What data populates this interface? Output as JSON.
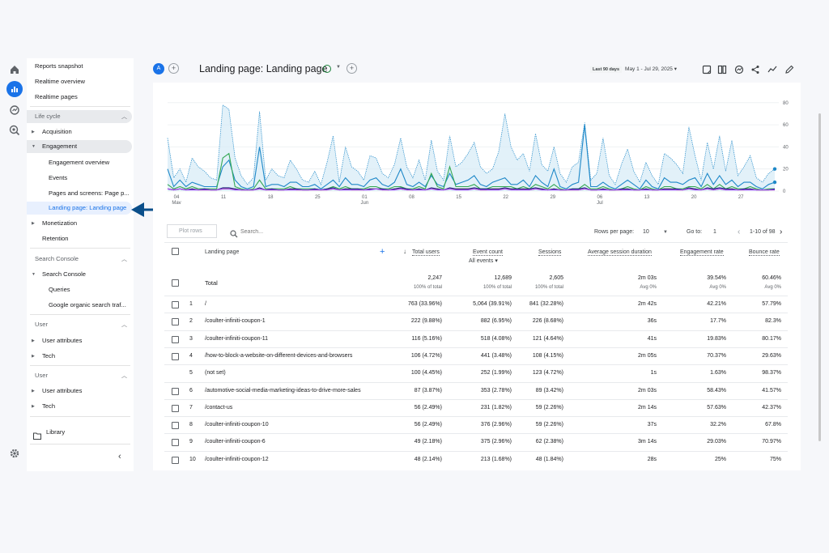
{
  "rail": {
    "icons": [
      "home-icon",
      "reports-icon",
      "explore-icon",
      "advertising-icon",
      "settings-icon"
    ]
  },
  "sidebar": {
    "top_items": [
      "Reports snapshot",
      "Realtime overview",
      "Realtime pages"
    ],
    "lifecycle_header": "Life cycle",
    "acquisition": "Acquisition",
    "engagement": "Engagement",
    "engagement_children": [
      "Engagement overview",
      "Events",
      "Pages and screens: Page p...",
      "Landing page: Landing page"
    ],
    "monetization": "Monetization",
    "retention": "Retention",
    "search_console_header": "Search Console",
    "search_console": "Search Console",
    "search_console_children": [
      "Queries",
      "Google organic search traf..."
    ],
    "user_header_1": "User",
    "user_attributes_1": "User attributes",
    "tech_1": "Tech",
    "user_header_2": "User",
    "user_attributes_2": "User attributes",
    "tech_2": "Tech",
    "library": "Library"
  },
  "header": {
    "avatar": "A",
    "title": "Landing page: Landing page",
    "date_badge": "Last 90 days",
    "date_range": "May 1 - Jul 29, 2025"
  },
  "chart_data": {
    "type": "line",
    "x_ticks": [
      "04\nMay",
      "11",
      "18",
      "25",
      "01\nJun",
      "08",
      "15",
      "22",
      "29",
      "06\nJul",
      "13",
      "20",
      "27"
    ],
    "y_ticks": [
      "80",
      "60",
      "40",
      "20",
      "0"
    ],
    "ylim": [
      0,
      85
    ],
    "series": [
      {
        "name": "Total",
        "color": "#1e88c8",
        "values": [
          48,
          12,
          20,
          8,
          30,
          22,
          18,
          12,
          10,
          78,
          74,
          30,
          14,
          6,
          12,
          72,
          10,
          20,
          14,
          12,
          28,
          20,
          10,
          8,
          18,
          6,
          26,
          50,
          8,
          40,
          22,
          18,
          10,
          32,
          30,
          16,
          12,
          24,
          48,
          22,
          12,
          28,
          10,
          46,
          18,
          10,
          50,
          22,
          26,
          34,
          44,
          22,
          16,
          20,
          36,
          70,
          40,
          28,
          34,
          18,
          52,
          24,
          18,
          40,
          16,
          8,
          22,
          26,
          62,
          10,
          16,
          48,
          14,
          6,
          24,
          38,
          18,
          8,
          26,
          14,
          6,
          34,
          30,
          24,
          16,
          58,
          32,
          10,
          44,
          20,
          50,
          18,
          46,
          14,
          22,
          32,
          12,
          8,
          16,
          20
        ]
      },
      {
        "name": "/",
        "color": "#1e88c8",
        "values": [
          20,
          4,
          10,
          4,
          8,
          6,
          4,
          4,
          4,
          22,
          28,
          10,
          4,
          2,
          4,
          40,
          4,
          6,
          6,
          4,
          8,
          8,
          4,
          4,
          6,
          2,
          6,
          10,
          4,
          12,
          6,
          6,
          4,
          10,
          12,
          6,
          4,
          8,
          20,
          6,
          4,
          8,
          4,
          14,
          6,
          4,
          16,
          6,
          8,
          10,
          14,
          6,
          4,
          8,
          10,
          12,
          6,
          6,
          10,
          4,
          14,
          8,
          4,
          20,
          4,
          2,
          6,
          8,
          60,
          4,
          4,
          8,
          4,
          2,
          6,
          10,
          6,
          2,
          10,
          4,
          2,
          12,
          8,
          8,
          6,
          10,
          12,
          4,
          16,
          6,
          14,
          6,
          10,
          4,
          8,
          8,
          4,
          2,
          6,
          8
        ]
      },
      {
        "name": "/coulter-infiniti-coupon-1",
        "color": "#34a853",
        "values": [
          6,
          2,
          4,
          2,
          4,
          2,
          2,
          2,
          2,
          30,
          34,
          4,
          2,
          1,
          2,
          10,
          2,
          2,
          2,
          2,
          4,
          2,
          2,
          2,
          2,
          1,
          2,
          4,
          2,
          4,
          2,
          2,
          2,
          4,
          4,
          2,
          2,
          4,
          4,
          2,
          2,
          4,
          2,
          16,
          4,
          2,
          22,
          4,
          4,
          4,
          6,
          2,
          2,
          4,
          4,
          4,
          4,
          2,
          4,
          2,
          6,
          4,
          2,
          6,
          2,
          1,
          2,
          2,
          6,
          2,
          2,
          4,
          2,
          1,
          2,
          4,
          2,
          1,
          4,
          2,
          1,
          4,
          4,
          2,
          2,
          4,
          4,
          2,
          6,
          2,
          6,
          2,
          4,
          2,
          2,
          4,
          2,
          1,
          2,
          2
        ]
      },
      {
        "name": "/coulter-infiniti-coupon-11",
        "color": "#f29900",
        "values": [
          2,
          1,
          2,
          1,
          2,
          1,
          1,
          1,
          1,
          2,
          2,
          2,
          1,
          1,
          1,
          2,
          1,
          1,
          1,
          1,
          2,
          1,
          1,
          1,
          1,
          1,
          1,
          2,
          1,
          2,
          1,
          1,
          1,
          2,
          2,
          1,
          1,
          2,
          2,
          1,
          1,
          2,
          1,
          2,
          2,
          1,
          2,
          2,
          2,
          2,
          2,
          1,
          1,
          2,
          2,
          2,
          2,
          1,
          2,
          1,
          2,
          2,
          1,
          2,
          1,
          1,
          1,
          1,
          2,
          1,
          1,
          2,
          1,
          1,
          1,
          2,
          1,
          1,
          2,
          1,
          1,
          2,
          2,
          1,
          1,
          2,
          2,
          1,
          2,
          1,
          2,
          1,
          2,
          1,
          1,
          2,
          1,
          1,
          1,
          1
        ]
      },
      {
        "name": "/how-to-block-a-website-on-different-devices-and-browsers",
        "color": "#1a237e",
        "values": [
          2,
          1,
          2,
          1,
          2,
          1,
          2,
          1,
          1,
          3,
          3,
          2,
          1,
          1,
          1,
          3,
          1,
          2,
          1,
          1,
          2,
          2,
          1,
          1,
          2,
          1,
          2,
          3,
          1,
          2,
          2,
          2,
          1,
          2,
          2,
          2,
          1,
          2,
          3,
          2,
          1,
          2,
          1,
          3,
          2,
          1,
          3,
          2,
          2,
          2,
          3,
          2,
          2,
          2,
          2,
          3,
          2,
          2,
          2,
          2,
          3,
          2,
          1,
          2,
          1,
          1,
          2,
          2,
          3,
          1,
          1,
          2,
          1,
          1,
          2,
          2,
          1,
          1,
          2,
          1,
          1,
          2,
          2,
          2,
          1,
          3,
          2,
          1,
          3,
          2,
          3,
          2,
          2,
          1,
          2,
          2,
          1,
          1,
          1,
          2
        ]
      },
      {
        "name": "/automotive-social-media-marketing-ideas-to-drive-more-sales",
        "color": "#a142f4",
        "values": [
          2,
          1,
          2,
          1,
          1,
          1,
          1,
          1,
          1,
          2,
          2,
          1,
          1,
          1,
          1,
          2,
          1,
          1,
          1,
          1,
          1,
          1,
          1,
          1,
          1,
          1,
          1,
          2,
          1,
          1,
          1,
          1,
          1,
          1,
          2,
          1,
          1,
          1,
          2,
          1,
          1,
          1,
          1,
          2,
          1,
          1,
          2,
          1,
          1,
          1,
          2,
          1,
          1,
          1,
          1,
          2,
          1,
          1,
          1,
          1,
          2,
          1,
          1,
          1,
          1,
          1,
          1,
          1,
          2,
          1,
          1,
          1,
          1,
          1,
          1,
          1,
          1,
          1,
          1,
          1,
          1,
          1,
          1,
          1,
          1,
          2,
          1,
          1,
          2,
          1,
          2,
          1,
          1,
          1,
          1,
          1,
          1,
          1,
          1,
          1
        ]
      }
    ]
  },
  "legend": [
    "Total",
    "/",
    "/coulter-infiniti-coupon-1",
    "/coulter-infiniti-coupon-11",
    "/how-to-block-a-website-on-different-devices-and-browsers",
    "/automotive-social-media-marketing-ideas-to-drive-more-sales"
  ],
  "controls": {
    "plot_rows": "Plot rows",
    "search_placeholder": "Search...",
    "rows_per_page_label": "Rows per page:",
    "rows_per_page": "10",
    "goto_label": "Go to:",
    "goto": "1",
    "pagination": "1-10 of 98"
  },
  "table": {
    "dimension_header": "Landing page",
    "columns": [
      "Total users",
      "Event count",
      "Sessions",
      "Average session duration",
      "Engagement rate",
      "Bounce rate"
    ],
    "event_filter": "All events",
    "total_label": "Total",
    "totals": [
      "2,247",
      "12,689",
      "2,605",
      "2m 03s",
      "39.54%",
      "60.46%"
    ],
    "totals_sub": [
      "100% of total",
      "100% of total",
      "100% of total",
      "Avg 0%",
      "Avg 0%",
      "Avg 0%"
    ],
    "rows": [
      {
        "idx": "1",
        "page": "/",
        "users": "763 (33.96%)",
        "events": "5,064 (39.91%)",
        "sessions": "841 (32.28%)",
        "dur": "2m 42s",
        "eng": "42.21%",
        "bounce": "57.79%"
      },
      {
        "idx": "2",
        "page": "/coulter-infiniti-coupon-1",
        "users": "222 (9.88%)",
        "events": "882 (6.95%)",
        "sessions": "226 (8.68%)",
        "dur": "36s",
        "eng": "17.7%",
        "bounce": "82.3%"
      },
      {
        "idx": "3",
        "page": "/coulter-infiniti-coupon-11",
        "users": "116 (5.16%)",
        "events": "518 (4.08%)",
        "sessions": "121 (4.64%)",
        "dur": "41s",
        "eng": "19.83%",
        "bounce": "80.17%"
      },
      {
        "idx": "4",
        "page": "/how-to-block-a-website-on-different-devices-and-browsers",
        "users": "106 (4.72%)",
        "events": "441 (3.48%)",
        "sessions": "108 (4.15%)",
        "dur": "2m 05s",
        "eng": "70.37%",
        "bounce": "29.63%"
      },
      {
        "idx": "5",
        "page": "(not set)",
        "users": "100 (4.45%)",
        "events": "252 (1.99%)",
        "sessions": "123 (4.72%)",
        "dur": "1s",
        "eng": "1.63%",
        "bounce": "98.37%"
      },
      {
        "idx": "6",
        "page": "/automotive-social-media-marketing-ideas-to-drive-more-sales",
        "users": "87 (3.87%)",
        "events": "353 (2.78%)",
        "sessions": "89 (3.42%)",
        "dur": "2m 03s",
        "eng": "58.43%",
        "bounce": "41.57%"
      },
      {
        "idx": "7",
        "page": "/contact-us",
        "users": "56 (2.49%)",
        "events": "231 (1.82%)",
        "sessions": "59 (2.26%)",
        "dur": "2m 14s",
        "eng": "57.63%",
        "bounce": "42.37%"
      },
      {
        "idx": "8",
        "page": "/coulter-infiniti-coupon-10",
        "users": "56 (2.49%)",
        "events": "376 (2.96%)",
        "sessions": "59 (2.26%)",
        "dur": "37s",
        "eng": "32.2%",
        "bounce": "67.8%"
      },
      {
        "idx": "9",
        "page": "/coulter-infiniti-coupon-6",
        "users": "49 (2.18%)",
        "events": "375 (2.96%)",
        "sessions": "62 (2.38%)",
        "dur": "3m 14s",
        "eng": "29.03%",
        "bounce": "70.97%"
      },
      {
        "idx": "10",
        "page": "/coulter-infiniti-coupon-12",
        "users": "48 (2.14%)",
        "events": "213 (1.68%)",
        "sessions": "48 (1.84%)",
        "dur": "28s",
        "eng": "25%",
        "bounce": "75%"
      }
    ]
  },
  "colors": {
    "accent": "#1a73e8",
    "arrow": "#0b4f8a"
  }
}
